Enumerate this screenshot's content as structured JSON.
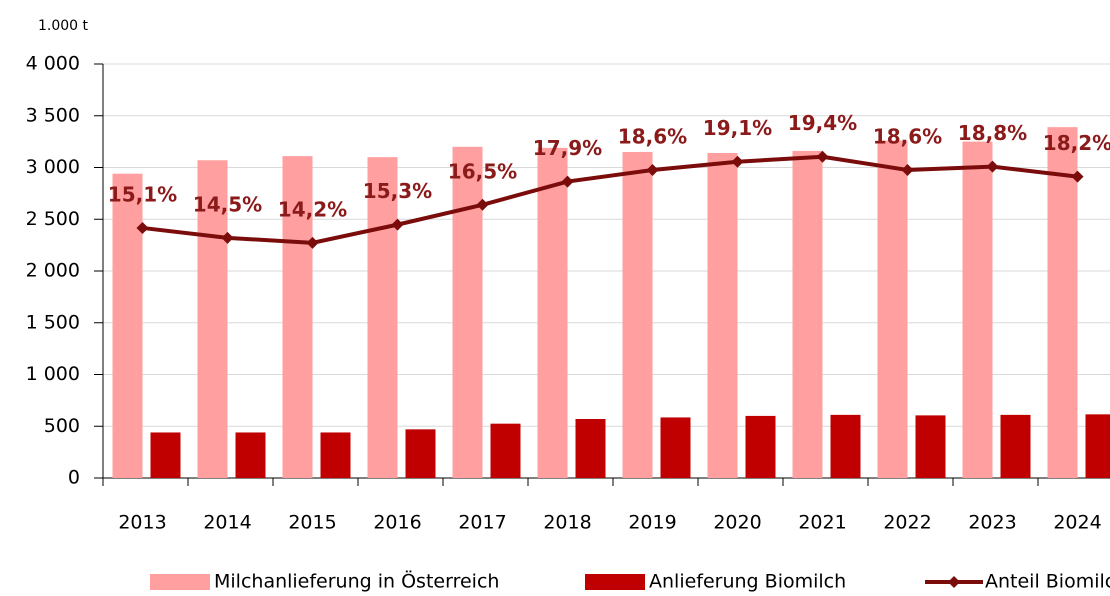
{
  "chart_data": {
    "type": "bar_line",
    "y_label": "1.000 t",
    "categories": [
      "2013",
      "2014",
      "2015",
      "2016",
      "2017",
      "2018",
      "2019",
      "2020",
      "2021",
      "2022",
      "2023",
      "2024"
    ],
    "series": [
      {
        "name": "Milchanlieferung in Österreich",
        "type": "bar",
        "color": "#ff9f9f",
        "values": [
          2940,
          3070,
          3110,
          3100,
          3200,
          3190,
          3150,
          3140,
          3160,
          3260,
          3250,
          3390
        ]
      },
      {
        "name": "Anlieferung Biomilch",
        "type": "bar",
        "color": "#c00000",
        "values": [
          440,
          440,
          440,
          470,
          525,
          570,
          585,
          600,
          610,
          605,
          610,
          615
        ]
      },
      {
        "name": "Anteil Biomilch",
        "type": "line",
        "axis": "y2",
        "color": "#7b0c0c",
        "values": [
          15.1,
          14.5,
          14.2,
          15.3,
          16.5,
          17.9,
          18.6,
          19.1,
          19.4,
          18.6,
          18.8,
          18.2
        ],
        "value_labels": [
          "15,1%",
          "14,5%",
          "14,2%",
          "15,3%",
          "16,5%",
          "17,9%",
          "18,6%",
          "19,1%",
          "19,4%",
          "18,6%",
          "18,8%",
          "18,2%"
        ]
      }
    ],
    "ylim": [
      0,
      4000
    ],
    "yticks": [
      0,
      500,
      {
        "value": 1000,
        "label": "1 000"
      },
      {
        "value": 1500,
        "label": "1 500"
      },
      {
        "value": 2000,
        "label": "2 000"
      },
      {
        "value": 2500,
        "label": "2 500"
      },
      {
        "value": 3000,
        "label": "3 000"
      },
      {
        "value": 3500,
        "label": "3 500"
      },
      {
        "value": 4000,
        "label": "4 000"
      }
    ],
    "y2lim": [
      0,
      25
    ],
    "grid": true,
    "legend": "bottom"
  }
}
